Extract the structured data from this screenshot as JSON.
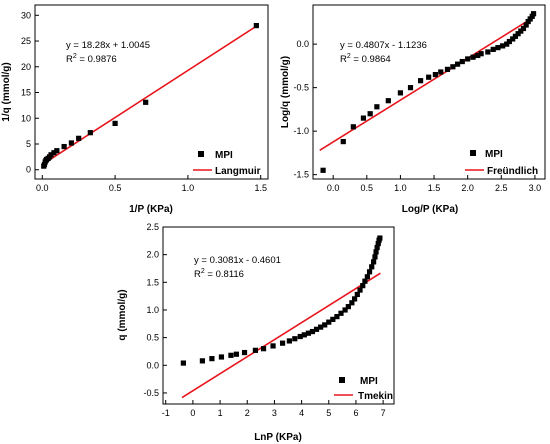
{
  "chart_data": [
    {
      "type": "scatter",
      "xlabel": "1/P (KPa)",
      "ylabel": "1/q (mmol/g)",
      "xlim": [
        -0.05,
        1.55
      ],
      "ylim": [
        -1.8,
        32
      ],
      "xticks": [
        0.0,
        0.5,
        1.0,
        1.5
      ],
      "xtick_labels": [
        "0.0",
        "0.5",
        "1.0",
        "1.5"
      ],
      "yticks": [
        0,
        5,
        10,
        15,
        20,
        25,
        30
      ],
      "ytick_labels": [
        "0",
        "5",
        "10",
        "15",
        "20",
        "25",
        "30"
      ],
      "equation": "y = 18.28x + 1.0045",
      "r2_label": "R",
      "r2_sup": "2",
      "r2_value": " = 0.9876",
      "fit": {
        "name": "Langmuir",
        "slope": 18.28,
        "intercept": 1.0045,
        "x_range": [
          0.0,
          1.48
        ],
        "color": "#e8141b"
      },
      "series": [
        {
          "name": "MPI",
          "color": "#000000",
          "x": [
            0.01,
            0.015,
            0.02,
            0.025,
            0.03,
            0.04,
            0.05,
            0.06,
            0.08,
            0.1,
            0.15,
            0.2,
            0.25,
            0.33,
            0.5,
            0.71,
            1.47
          ],
          "y": [
            0.7,
            1.0,
            1.5,
            1.8,
            2.0,
            2.2,
            2.5,
            2.9,
            3.3,
            3.7,
            4.5,
            5.2,
            6.1,
            7.2,
            9.0,
            13.1,
            28.0
          ]
        }
      ],
      "legend_position": "bottom-right"
    },
    {
      "type": "scatter",
      "xlabel": "Log/P (KPa)",
      "ylabel": "Log/q (mmol/g)",
      "xlim": [
        -0.3,
        3.15
      ],
      "ylim": [
        -1.55,
        0.45
      ],
      "xticks": [
        0.0,
        0.5,
        1.0,
        1.5,
        2.0,
        2.5,
        3.0
      ],
      "xtick_labels": [
        "0.0",
        "0.5",
        "1.0",
        "1.5",
        "2.0",
        "2.5",
        "3.0"
      ],
      "yticks": [
        -1.5,
        -1.0,
        -0.5,
        0.0
      ],
      "ytick_labels": [
        "-1.5",
        "-1.0",
        "-0.5",
        "0.0"
      ],
      "equation": "y = 0.4807x - 1.1236",
      "r2_label": "R",
      "r2_sup": "2",
      "r2_value": " = 0.9864",
      "fit": {
        "name": "Freündlich",
        "slope": 0.4807,
        "intercept": -1.1236,
        "x_range": [
          -0.2,
          2.98
        ],
        "color": "#e8141b"
      },
      "series": [
        {
          "name": "MPI",
          "color": "#000000",
          "x": [
            -0.15,
            0.15,
            0.3,
            0.45,
            0.55,
            0.65,
            0.82,
            1.0,
            1.15,
            1.3,
            1.42,
            1.52,
            1.6,
            1.7,
            1.78,
            1.85,
            1.92,
            2.0,
            2.08,
            2.15,
            2.2,
            2.3,
            2.38,
            2.45,
            2.52,
            2.58,
            2.62,
            2.67,
            2.71,
            2.75,
            2.79,
            2.83,
            2.87,
            2.9,
            2.93,
            2.96,
            2.98
          ],
          "y": [
            -1.45,
            -1.12,
            -0.95,
            -0.85,
            -0.8,
            -0.72,
            -0.65,
            -0.56,
            -0.5,
            -0.42,
            -0.38,
            -0.35,
            -0.32,
            -0.29,
            -0.26,
            -0.23,
            -0.2,
            -0.17,
            -0.15,
            -0.13,
            -0.11,
            -0.09,
            -0.06,
            -0.04,
            -0.02,
            0.0,
            0.03,
            0.06,
            0.09,
            0.12,
            0.15,
            0.18,
            0.22,
            0.26,
            0.29,
            0.32,
            0.35
          ]
        }
      ],
      "legend_position": "bottom-right"
    },
    {
      "type": "scatter",
      "xlabel": "LnP (KPa)",
      "ylabel": "q (mmol/g)",
      "xlim": [
        -1.1,
        7.4
      ],
      "ylim": [
        -0.7,
        2.5
      ],
      "xticks": [
        -1,
        0,
        1,
        2,
        3,
        4,
        5,
        6,
        7
      ],
      "xtick_labels": [
        "-1",
        "0",
        "1",
        "2",
        "3",
        "4",
        "5",
        "6",
        "7"
      ],
      "yticks": [
        -0.5,
        0.0,
        0.5,
        1.0,
        1.5,
        2.0,
        2.5
      ],
      "ytick_labels": [
        "-0.5",
        "0.0",
        "0.5",
        "1.0",
        "1.5",
        "2.0",
        "2.5"
      ],
      "equation": "y = 0.3081x - 0.4601",
      "r2_label": "R",
      "r2_sup": "2",
      "r2_value": " = 0.8116",
      "fit": {
        "name": "Tmekin",
        "slope": 0.3081,
        "intercept": -0.4601,
        "x_range": [
          -0.4,
          6.9
        ],
        "color": "#e8141b"
      },
      "series": [
        {
          "name": "MPI",
          "color": "#000000",
          "x": [
            -0.35,
            0.35,
            0.7,
            1.05,
            1.4,
            1.6,
            1.9,
            2.3,
            2.6,
            2.95,
            3.3,
            3.55,
            3.75,
            3.95,
            4.1,
            4.25,
            4.4,
            4.55,
            4.7,
            4.85,
            5.0,
            5.15,
            5.3,
            5.45,
            5.6,
            5.72,
            5.85,
            5.95,
            6.05,
            6.15,
            6.25,
            6.33,
            6.42,
            6.5,
            6.58,
            6.65,
            6.7,
            6.74,
            6.78,
            6.82,
            6.85,
            6.88
          ],
          "y": [
            0.04,
            0.08,
            0.12,
            0.15,
            0.18,
            0.2,
            0.23,
            0.27,
            0.3,
            0.35,
            0.4,
            0.44,
            0.48,
            0.52,
            0.55,
            0.58,
            0.61,
            0.65,
            0.69,
            0.73,
            0.78,
            0.83,
            0.88,
            0.94,
            1.0,
            1.06,
            1.13,
            1.2,
            1.28,
            1.36,
            1.44,
            1.52,
            1.6,
            1.69,
            1.78,
            1.87,
            1.96,
            2.05,
            2.13,
            2.2,
            2.26,
            2.3
          ]
        }
      ],
      "legend_position": "bottom-right"
    }
  ]
}
